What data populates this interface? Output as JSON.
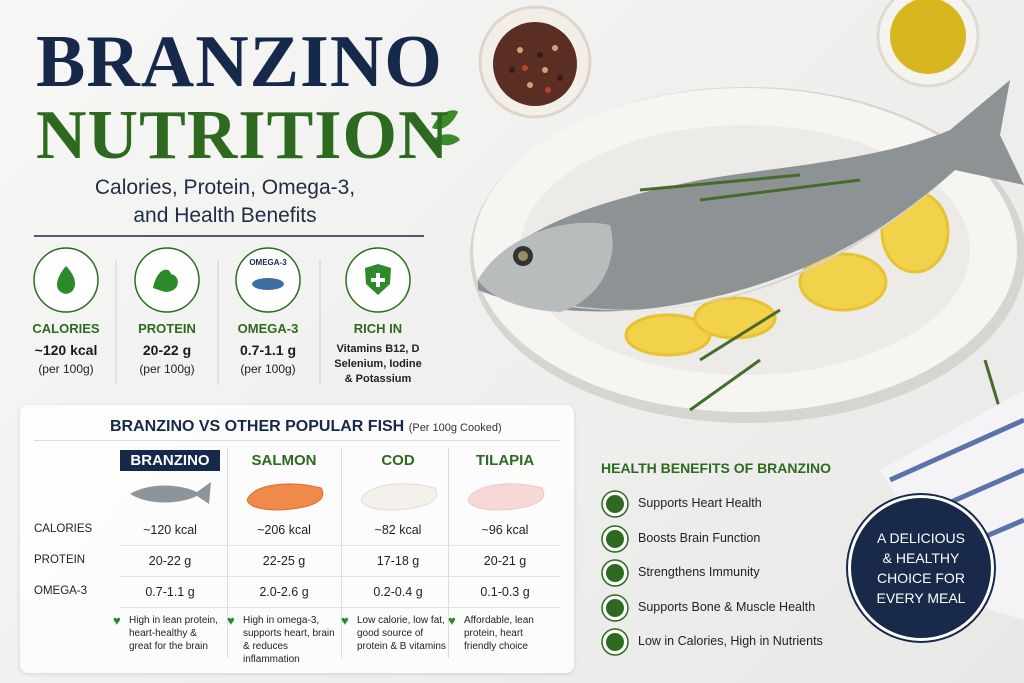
{
  "header": {
    "title_line1": "BRANZINO",
    "title_line2": "NUTRITION",
    "subtitle_lines": [
      "Calories, Protein, Omega-3,",
      "and Health Benefits"
    ]
  },
  "stats": [
    {
      "label": "CALORIES",
      "value": "~120 kcal",
      "note": "(per 100g)"
    },
    {
      "label": "PROTEIN",
      "value": "20-22 g",
      "note": "(per 100g)"
    },
    {
      "label": "OMEGA-3",
      "icon_text": "OMEGA-3",
      "value": "0.7-1.1 g",
      "note": "(per 100g)"
    },
    {
      "label": "RICH IN",
      "lines": [
        "Vitamins B12, D",
        "Selenium, Iodine",
        "& Potassium"
      ]
    }
  ],
  "comparison": {
    "title": "BRANZINO VS OTHER POPULAR FISH",
    "note": "(Per 100g Cooked)",
    "columns": [
      "BRANZINO",
      "SALMON",
      "COD",
      "TILAPIA"
    ],
    "row_labels": [
      "CALORIES",
      "PROTEIN",
      "OMEGA-3"
    ],
    "rows": [
      [
        "~120 kcal",
        "~206 kcal",
        "~82 kcal",
        "~96 kcal"
      ],
      [
        "20-22 g",
        "22-25 g",
        "17-18 g",
        "20-21 g"
      ],
      [
        "0.7-1.1 g",
        "2.0-2.6 g",
        "0.2-0.4 g",
        "0.1-0.3 g"
      ]
    ],
    "notes": [
      [
        "High in lean protein,",
        "heart-healthy &",
        "great for the brain"
      ],
      [
        "High in omega-3,",
        "supports heart, brain",
        "& reduces inflammation"
      ],
      [
        "Low calorie, low fat,",
        "good source of",
        "protein & B vitamins"
      ],
      [
        "Affordable, lean",
        "protein, heart",
        "friendly choice"
      ]
    ]
  },
  "health_benefits": {
    "title": "HEALTH BENEFITS OF BRANZINO",
    "items": [
      "Supports Heart Health",
      "Boosts Brain Function",
      "Strengthens Immunity",
      "Supports Bone & Muscle Health",
      "Low in Calories, High in Nutrients"
    ]
  },
  "badge": {
    "lines": [
      "A DELICIOUS",
      "& HEALTHY",
      "CHOICE FOR",
      "EVERY MEAL"
    ]
  }
}
